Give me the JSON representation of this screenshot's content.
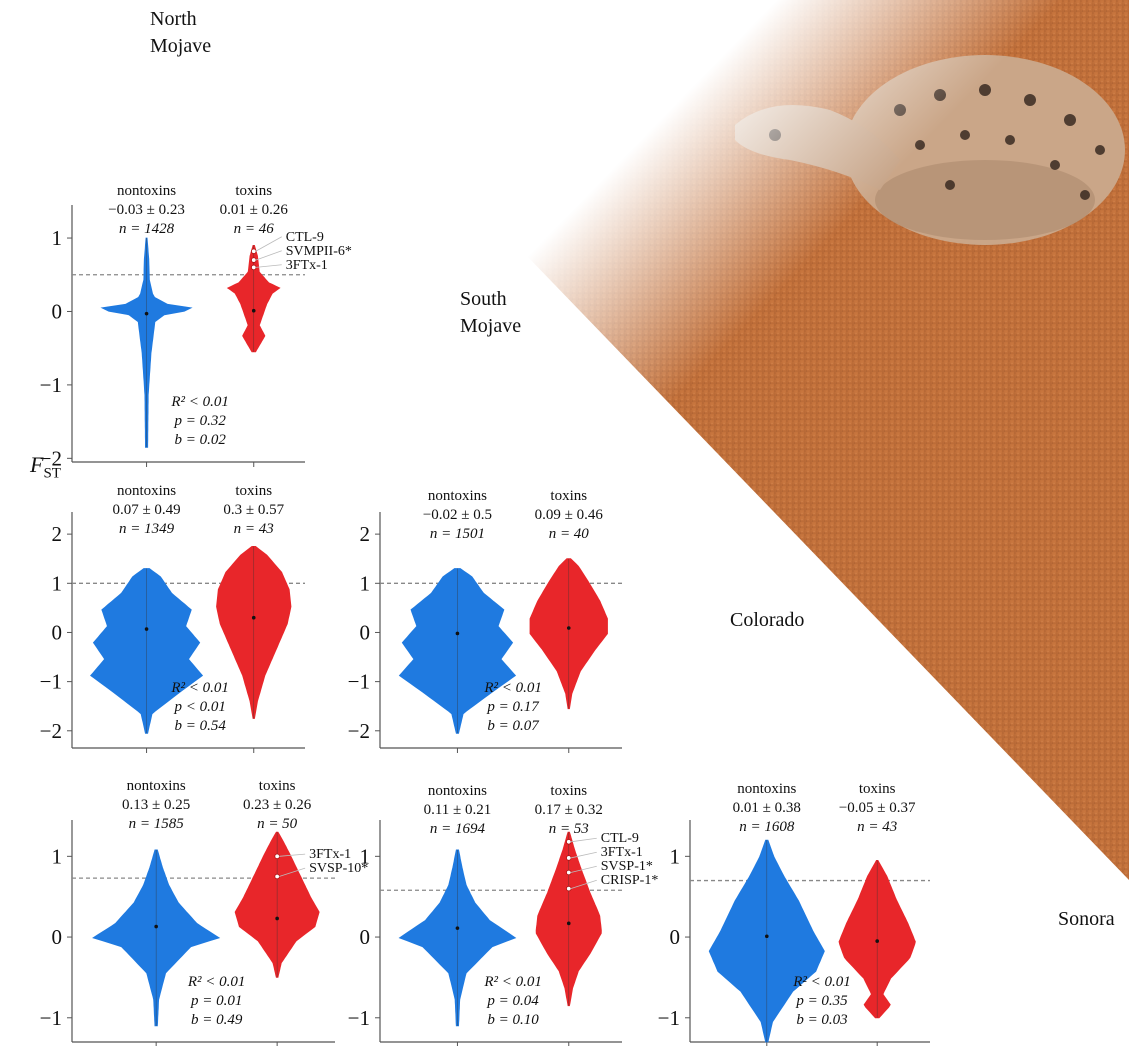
{
  "regions": {
    "north": [
      "North",
      "Mojave"
    ],
    "south": [
      "South",
      "Mojave"
    ],
    "colorado": "Colorado",
    "sonora": "Sonora"
  },
  "y_axis_label": {
    "main": "F",
    "sub": "ST"
  },
  "colors": {
    "nontoxins": "#1f7ae0",
    "toxins": "#e8262a",
    "threshold": "#888888",
    "axis": "#555555"
  },
  "chart_data": [
    {
      "type": "violin",
      "panel": "row1-col1",
      "yticks": [
        -2,
        -1,
        0,
        1
      ],
      "ylim": [
        -2.05,
        1.45
      ],
      "threshold": 0.5,
      "groups": [
        {
          "name": "nontoxins",
          "mean_sd": "−0.03 ± 0.23",
          "n": "n = 1428",
          "mean": -0.03,
          "range": [
            -1.85,
            1.0
          ]
        },
        {
          "name": "toxins",
          "mean_sd": "0.01 ± 0.26",
          "n": "n = 46",
          "mean": 0.01,
          "range": [
            -0.55,
            0.9
          ]
        }
      ],
      "stats": [
        "R² < 0.01",
        "p = 0.32",
        "b = 0.02"
      ],
      "annotations": [
        "CTL-9",
        "SVMPII-6*",
        "3FTx-1"
      ],
      "annotation_values": [
        0.82,
        0.7,
        0.6
      ]
    },
    {
      "type": "violin",
      "panel": "row2-col1",
      "yticks": [
        -2,
        -1,
        0,
        1,
        2
      ],
      "ylim": [
        -2.35,
        2.45
      ],
      "threshold": 1.0,
      "groups": [
        {
          "name": "nontoxins",
          "mean_sd": "0.07 ± 0.49",
          "n": "n = 1349",
          "mean": 0.07,
          "range": [
            -2.05,
            1.3
          ]
        },
        {
          "name": "toxins",
          "mean_sd": "0.3 ± 0.57",
          "n": "n = 43",
          "mean": 0.3,
          "range": [
            -1.75,
            1.75
          ]
        }
      ],
      "stats": [
        "R² < 0.01",
        "p < 0.01",
        "b = 0.54"
      ],
      "annotations": [],
      "annotation_values": []
    },
    {
      "type": "violin",
      "panel": "row2-col2",
      "yticks": [
        -2,
        -1,
        0,
        1,
        2
      ],
      "ylim": [
        -2.35,
        2.45
      ],
      "threshold": 1.0,
      "groups": [
        {
          "name": "nontoxins",
          "mean_sd": "−0.02 ± 0.5",
          "n": "n = 1501",
          "mean": -0.02,
          "range": [
            -2.05,
            1.3
          ]
        },
        {
          "name": "toxins",
          "mean_sd": "0.09 ± 0.46",
          "n": "n = 40",
          "mean": 0.09,
          "range": [
            -1.55,
            1.5
          ]
        }
      ],
      "stats": [
        "R² < 0.01",
        "p = 0.17",
        "b = 0.07"
      ],
      "annotations": [],
      "annotation_values": []
    },
    {
      "type": "violin",
      "panel": "row3-col1",
      "yticks": [
        -1,
        0,
        1
      ],
      "ylim": [
        -1.3,
        1.45
      ],
      "threshold": 0.73,
      "groups": [
        {
          "name": "nontoxins",
          "mean_sd": "0.13 ± 0.25",
          "n": "n = 1585",
          "mean": 0.13,
          "range": [
            -1.1,
            1.08
          ]
        },
        {
          "name": "toxins",
          "mean_sd": "0.23 ± 0.26",
          "n": "n = 50",
          "mean": 0.23,
          "range": [
            -0.5,
            1.3
          ]
        }
      ],
      "stats": [
        "R² < 0.01",
        "p = 0.01",
        "b = 0.49"
      ],
      "annotations": [
        "3FTx-1",
        "SVSP-10*"
      ],
      "annotation_values": [
        1.0,
        0.75
      ]
    },
    {
      "type": "violin",
      "panel": "row3-col2",
      "yticks": [
        -1,
        0,
        1
      ],
      "ylim": [
        -1.3,
        1.45
      ],
      "threshold": 0.58,
      "groups": [
        {
          "name": "nontoxins",
          "mean_sd": "0.11 ± 0.21",
          "n": "n = 1694",
          "mean": 0.11,
          "range": [
            -1.1,
            1.08
          ]
        },
        {
          "name": "toxins",
          "mean_sd": "0.17 ± 0.32",
          "n": "n = 53",
          "mean": 0.17,
          "range": [
            -0.85,
            1.3
          ]
        }
      ],
      "stats": [
        "R² < 0.01",
        "p = 0.04",
        "b = 0.10"
      ],
      "annotations": [
        "CTL-9",
        "3FTx-1",
        "SVSP-1*",
        "CRISP-1*"
      ],
      "annotation_values": [
        1.18,
        0.98,
        0.8,
        0.6
      ]
    },
    {
      "type": "violin",
      "panel": "row3-col3",
      "yticks": [
        -1,
        0,
        1
      ],
      "ylim": [
        -1.3,
        1.45
      ],
      "threshold": 0.7,
      "groups": [
        {
          "name": "nontoxins",
          "mean_sd": "0.01 ± 0.38",
          "n": "n = 1608",
          "mean": 0.01,
          "range": [
            -1.3,
            1.2
          ]
        },
        {
          "name": "toxins",
          "mean_sd": "−0.05 ± 0.37",
          "n": "n = 43",
          "mean": -0.05,
          "range": [
            -1.0,
            0.95
          ]
        }
      ],
      "stats": [
        "R² < 0.01",
        "p = 0.35",
        "b = 0.03"
      ],
      "annotations": [],
      "annotation_values": []
    }
  ]
}
